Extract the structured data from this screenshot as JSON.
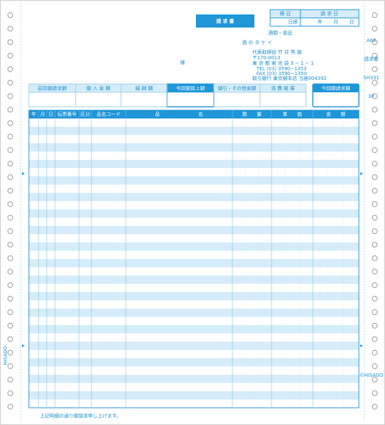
{
  "title": "請 求 書",
  "date_box": {
    "headers": [
      "締 日",
      "請 求 日"
    ],
    "closing": "日締",
    "date_parts": [
      "年",
      "月",
      "日"
    ]
  },
  "addressee_suffix": "様",
  "company": {
    "category": "酒類・食品",
    "name": "酒 の タ ケ イ",
    "representative": "代表取締役 竹 井 秀 雄",
    "postal": "〒170-0013",
    "address": "東 京 都 東 池 袋 3 − 1 − 1",
    "tel": "TEL (03) 3590−1353",
    "fax": "FAX (03) 3590−1350",
    "bank": "取引銀行 東京銀本店 当座004392"
  },
  "summary": {
    "columns": [
      "前回御請求額",
      "御 入 金 額",
      "繰 越 額",
      "今回御買上額",
      "値引・その他金額",
      "消 費 税 等"
    ],
    "total": "今回御請求額"
  },
  "table": {
    "columns": [
      "年",
      "月",
      "日",
      "伝票番号",
      "区分",
      "品名コード",
      "品　　　　　　　　名",
      "数　　量",
      "単　　価",
      "金　　額"
    ]
  },
  "footer": "上記明細の通り御請求申し上げます。",
  "side": {
    "form_code": "A68",
    "form_name": "請求書",
    "product_code": "SH331",
    "parts": "3P",
    "maker_left": "HISAGO",
    "maker_right": "©HISAGO"
  }
}
